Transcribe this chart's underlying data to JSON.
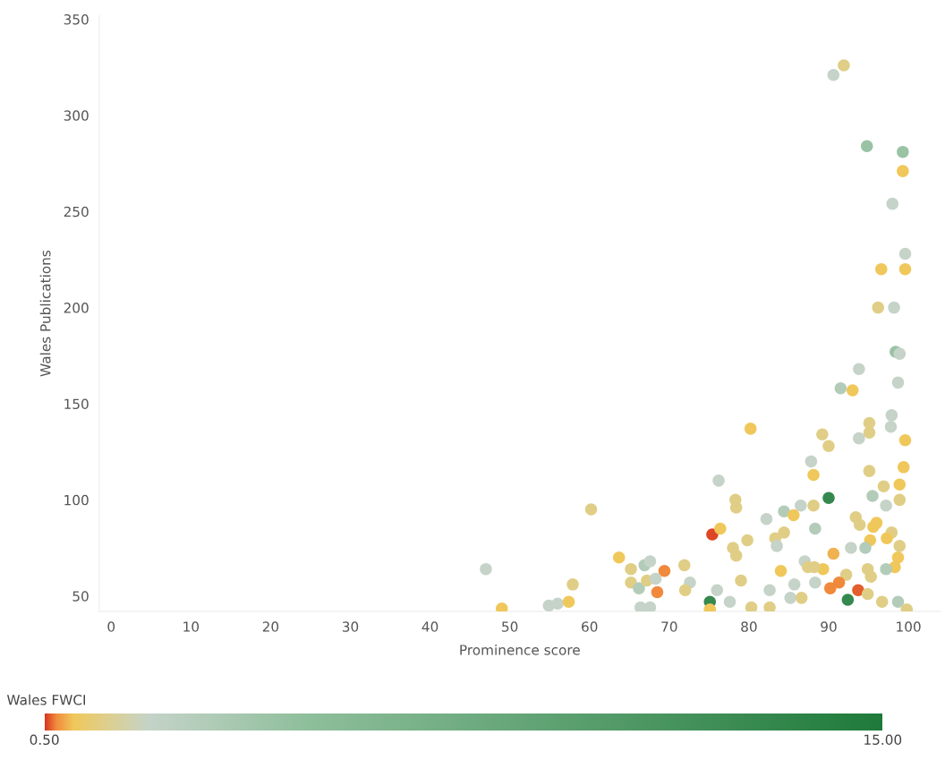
{
  "chart_data": {
    "type": "scatter",
    "xlabel": "Prominence score",
    "ylabel": "Wales Publications",
    "clabel": "Wales FWCI",
    "xlim": [
      -1.5,
      104
    ],
    "xticks": [
      0,
      10,
      20,
      30,
      40,
      50,
      60,
      70,
      80,
      90,
      100
    ],
    "ylim": [
      42,
      352
    ],
    "yticks": [
      50,
      100,
      150,
      200,
      250,
      300,
      350
    ],
    "clim": [
      0.5,
      15
    ],
    "cticks": [
      {
        "value": 0.5,
        "label": "0.50"
      },
      {
        "value": 15,
        "label": "15.00"
      }
    ],
    "grid": false,
    "marker": "circle",
    "series": [
      {
        "x": [
          91.9,
          90.6,
          94.8,
          99.3,
          99.3,
          98.0,
          99.6,
          96.6,
          99.6,
          96.2,
          98.2,
          98.4,
          98.9,
          93.8,
          98.7,
          91.5,
          93.0,
          97.9,
          95.1,
          95.1,
          97.8,
          80.2,
          89.2,
          90.0,
          93.8,
          99.6,
          87.8,
          88.1,
          99.4,
          95.1,
          76.2,
          96.9,
          98.9,
          90.0,
          95.5,
          98.9,
          78.3,
          78.4,
          97.2,
          86.5,
          88.1,
          84.4,
          85.6,
          82.2,
          93.4,
          93.9,
          95.6,
          96.0,
          95.2,
          97.9,
          98.9,
          83.3,
          84.4,
          83.5,
          88.3,
          75.4,
          76.4,
          79.8,
          78.0,
          78.4,
          97.3,
          92.8,
          94.6,
          90.6,
          98.7,
          98.3,
          87.0,
          87.4,
          89.3,
          88.2,
          84.0,
          97.2,
          94.9,
          95.3,
          71.9,
          69.4,
          92.2,
          91.3,
          90.2,
          93.7,
          72.6,
          72.0,
          79.0,
          88.3,
          76.0,
          82.6,
          85.7,
          85.2,
          86.6,
          92.4,
          75.1,
          77.6,
          98.7,
          96.7,
          94.9,
          75.1,
          80.3,
          82.6,
          99.8,
          60.2,
          47.0,
          49.0,
          54.9,
          56.0,
          57.4,
          57.9,
          63.7,
          65.2,
          66.9,
          67.6,
          65.2,
          66.2,
          67.2,
          68.3,
          68.5,
          66.4,
          67.6
        ],
        "values": [
          326,
          321,
          284,
          281,
          271,
          254,
          228,
          220,
          220,
          200,
          200,
          177,
          176,
          168,
          161,
          158,
          157,
          144,
          140,
          135,
          138,
          137,
          134,
          128,
          132,
          131,
          120,
          113,
          117,
          115,
          110,
          107,
          108,
          101,
          102,
          100,
          100,
          96,
          97,
          97,
          97,
          94,
          92,
          90,
          91,
          87,
          86,
          88,
          79,
          83,
          76,
          80,
          83,
          76,
          85,
          82,
          85,
          79,
          75,
          71,
          80,
          75,
          75,
          72,
          70,
          65,
          68,
          65,
          64,
          65,
          63,
          64,
          64,
          60,
          66,
          63,
          61,
          57,
          54,
          53,
          57,
          53,
          58,
          57,
          53,
          53,
          56,
          49,
          49,
          48,
          47,
          47,
          47,
          47,
          51,
          43,
          44,
          44,
          43,
          95,
          64,
          43.5,
          45,
          46,
          47,
          56,
          70,
          64,
          66,
          68,
          57,
          54,
          58,
          59,
          52,
          44,
          44
        ],
        "cvalues": [
          1.5,
          2.3,
          4.5,
          4.5,
          1.0,
          2.3,
          2.3,
          1.0,
          1.0,
          1.5,
          2.3,
          4.5,
          2.3,
          2.3,
          2.3,
          3.2,
          1.0,
          2.3,
          1.5,
          1.5,
          2.3,
          1.0,
          1.5,
          1.5,
          2.3,
          1.0,
          2.3,
          1.0,
          1.0,
          1.5,
          2.3,
          1.5,
          1.0,
          13,
          3.2,
          1.5,
          1.5,
          1.5,
          2.3,
          2.3,
          1.5,
          3.2,
          1.0,
          2.3,
          1.5,
          1.5,
          1.0,
          1.0,
          1.0,
          1.5,
          1.5,
          1.5,
          1.5,
          2.3,
          3.2,
          0.55,
          1.0,
          1.5,
          1.5,
          1.5,
          1.0,
          2.3,
          3.2,
          0.9,
          1.0,
          1.0,
          2.3,
          1.5,
          1.0,
          1.5,
          1.0,
          3.2,
          1.5,
          1.5,
          1.5,
          0.7,
          1.5,
          0.7,
          0.7,
          0.6,
          2.3,
          1.5,
          1.5,
          2.3,
          2.3,
          2.3,
          2.3,
          2.3,
          1.5,
          13,
          13,
          2.3,
          3.2,
          1.5,
          1.5,
          1.0,
          1.5,
          1.5,
          1.5,
          1.5,
          2.3,
          1.0,
          2.3,
          2.3,
          1.0,
          1.5,
          1.0,
          1.5,
          3.2,
          2.3,
          1.5,
          3.2,
          1.5,
          2.3,
          0.7,
          2.3,
          2.3
        ]
      }
    ]
  }
}
